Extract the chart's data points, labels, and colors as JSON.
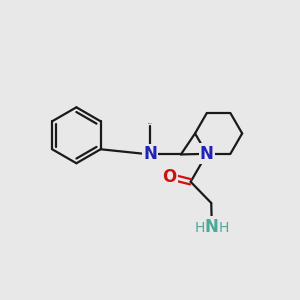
{
  "bg_color": "#e8e8e8",
  "bond_color": "#1a1a1a",
  "N_color": "#2222bb",
  "O_color": "#cc1111",
  "NH2_color": "#4aaa99",
  "line_width": 1.6,
  "figsize": [
    3.0,
    3.0
  ],
  "dpi": 100,
  "xlim": [
    0,
    10
  ],
  "ylim": [
    0,
    10
  ],
  "methyl_label": "methyl",
  "NH2_H_color": "#4aaa99"
}
